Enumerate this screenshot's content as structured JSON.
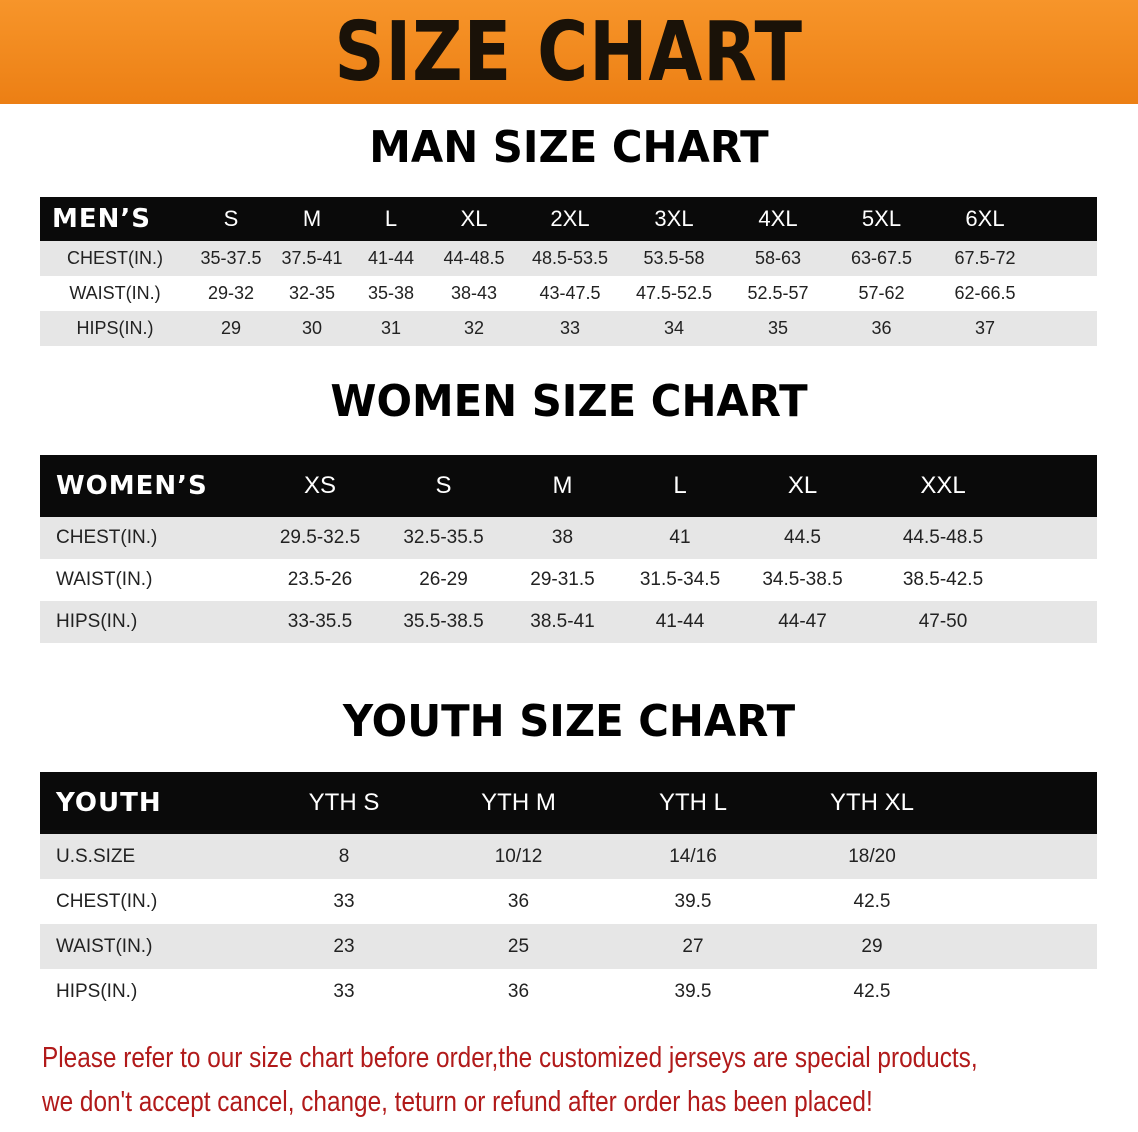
{
  "banner": "SIZE CHART",
  "men": {
    "title": "MAN SIZE CHART",
    "header": [
      "MEN’S",
      "S",
      "M",
      "L",
      "XL",
      "2XL",
      "3XL",
      "4XL",
      "5XL",
      "6XL"
    ],
    "rows": [
      [
        "CHEST(IN.)",
        "35-37.5",
        "37.5-41",
        "41-44",
        "44-48.5",
        "48.5-53.5",
        "53.5-58",
        "58-63",
        "63-67.5",
        "67.5-72"
      ],
      [
        "WAIST(IN.)",
        "29-32",
        "32-35",
        "35-38",
        "38-43",
        "43-47.5",
        "47.5-52.5",
        "52.5-57",
        "57-62",
        "62-66.5"
      ],
      [
        "HIPS(IN.)",
        "29",
        "30",
        "31",
        "32",
        "33",
        "34",
        "35",
        "36",
        "37"
      ]
    ]
  },
  "women": {
    "title": "WOMEN SIZE CHART",
    "header": [
      "WOMEN’S",
      "XS",
      "S",
      "M",
      "L",
      "XL",
      "XXL"
    ],
    "rows": [
      [
        "CHEST(IN.)",
        "29.5-32.5",
        "32.5-35.5",
        "38",
        "41",
        "44.5",
        "44.5-48.5"
      ],
      [
        "WAIST(IN.)",
        "23.5-26",
        "26-29",
        "29-31.5",
        "31.5-34.5",
        "34.5-38.5",
        "38.5-42.5"
      ],
      [
        "HIPS(IN.)",
        "33-35.5",
        "35.5-38.5",
        "38.5-41",
        "41-44",
        "44-47",
        "47-50"
      ]
    ]
  },
  "youth": {
    "title": "YOUTH SIZE CHART",
    "header": [
      "YOUTH",
      "YTH S",
      "YTH M",
      "YTH L",
      "YTH XL"
    ],
    "rows": [
      [
        "U.S.SIZE",
        "8",
        "10/12",
        "14/16",
        "18/20"
      ],
      [
        "CHEST(IN.)",
        "33",
        "36",
        "39.5",
        "42.5"
      ],
      [
        "WAIST(IN.)",
        "23",
        "25",
        "27",
        "29"
      ],
      [
        "HIPS(IN.)",
        "33",
        "36",
        "39.5",
        "42.5"
      ]
    ]
  },
  "note": [
    "Please refer to our size chart before order,the customized jerseys are special products,",
    "we don't accept cancel, change, teturn or refund after order has been placed!"
  ],
  "colors": {
    "banner": "#ef8a1e",
    "header_row": "#0a0a0a",
    "shaded_row": "#e6e6e6",
    "note": "#b11a1a"
  }
}
